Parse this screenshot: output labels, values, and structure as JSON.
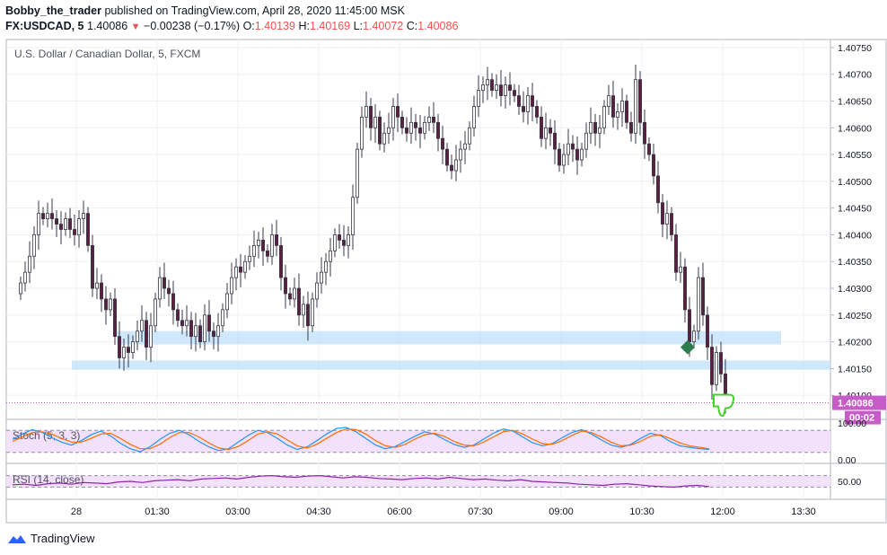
{
  "header": {
    "user": "Bobby_the_trader",
    "published_text": "published on TradingView.com, April 28, 2020 11:45:00 MSK",
    "symbol": "FX:USDCAD, 5",
    "last": "1.40086",
    "change": "−0.00238 (−0.17%)",
    "o_label": "O:",
    "o_value": "1.40139",
    "h_label": "H:",
    "h_value": "1.40169",
    "l_label": "L:",
    "l_value": "1.40072",
    "c_label": "C:",
    "c_value": "1.40086"
  },
  "footer": {
    "brand": "TradingView"
  },
  "colors": {
    "bullish": "#ffffff",
    "candle_outline": "#3a3a4a",
    "bearish": "#5b1f3f",
    "zone": "#bbdefb",
    "price_tag": "#c75bc7",
    "stoch_k": "#2196f3",
    "stoch_d": "#ff6d00",
    "rsi": "#8e24aa",
    "osc_band": "#f3e0fb"
  },
  "chart_data": [
    {
      "type": "candlestick",
      "title": "U.S. Dollar / Canadian Dollar, 5, FXCM",
      "ylim": [
        1.40055,
        1.40765
      ],
      "y_ticks": [
        "1.40750",
        "1.40700",
        "1.40650",
        "1.40600",
        "1.40550",
        "1.40500",
        "1.40450",
        "1.40400",
        "1.40350",
        "1.40300",
        "1.40250",
        "1.40200",
        "1.40150",
        "1.40100"
      ],
      "x_ticks": [
        "28",
        "01:30",
        "03:00",
        "04:30",
        "06:00",
        "07:30",
        "09:00",
        "10:30",
        "12:00",
        "13:30"
      ],
      "x_tick_minutes": [
        0,
        90,
        180,
        270,
        360,
        450,
        540,
        630,
        720,
        810
      ],
      "start_minute": -75,
      "bar_minutes": 5,
      "last_price_label": "1.40086",
      "countdown_label": "00:02",
      "last_price": 1.40086,
      "closes": [
        1.4031,
        1.4033,
        1.4036,
        1.404,
        1.4044,
        1.4043,
        1.4044,
        1.4043,
        1.4042,
        1.4041,
        1.4043,
        1.4041,
        1.404,
        1.4043,
        1.4044,
        1.4038,
        1.403,
        1.4031,
        1.4028,
        1.4026,
        1.4028,
        1.4021,
        1.4017,
        1.4019,
        1.4018,
        1.402,
        1.4022,
        1.4024,
        1.4019,
        1.4023,
        1.4028,
        1.4032,
        1.403,
        1.4029,
        1.4026,
        1.4024,
        1.4023,
        1.4024,
        1.4021,
        1.4023,
        1.402,
        1.4025,
        1.4022,
        1.4021,
        1.4023,
        1.4026,
        1.4029,
        1.4032,
        1.4034,
        1.4033,
        1.4035,
        1.4036,
        1.4038,
        1.4039,
        1.4037,
        1.4036,
        1.404,
        1.4038,
        1.4032,
        1.4029,
        1.4028,
        1.403,
        1.4025,
        1.4027,
        1.4023,
        1.4028,
        1.4031,
        1.4033,
        1.4035,
        1.4037,
        1.404,
        1.4039,
        1.4038,
        1.404,
        1.4047,
        1.4056,
        1.4062,
        1.4064,
        1.406,
        1.4062,
        1.4057,
        1.4059,
        1.406,
        1.4064,
        1.4062,
        1.406,
        1.4059,
        1.4061,
        1.406,
        1.4059,
        1.4061,
        1.4062,
        1.4061,
        1.4058,
        1.4056,
        1.4053,
        1.4052,
        1.4054,
        1.4056,
        1.4057,
        1.406,
        1.4064,
        1.4067,
        1.4068,
        1.4069,
        1.4067,
        1.4068,
        1.4066,
        1.4068,
        1.4067,
        1.4066,
        1.4064,
        1.4063,
        1.4066,
        1.4064,
        1.4062,
        1.4058,
        1.406,
        1.4059,
        1.4056,
        1.4053,
        1.4055,
        1.4057,
        1.4056,
        1.4054,
        1.4056,
        1.4059,
        1.4061,
        1.4059,
        1.406,
        1.4064,
        1.4066,
        1.4062,
        1.4063,
        1.4065,
        1.4061,
        1.4059,
        1.4069,
        1.4061,
        1.4057,
        1.4055,
        1.4051,
        1.4046,
        1.4042,
        1.4044,
        1.404,
        1.4033,
        1.4034,
        1.4026,
        1.402,
        1.4022,
        1.4032,
        1.4025,
        1.4019,
        1.4012,
        1.4018,
        1.4014,
        1.40086
      ],
      "zones": [
        [
          1.40195,
          1.4022
        ],
        [
          1.40148,
          1.40165
        ]
      ],
      "marker_up_price": 1.4019,
      "marker_down_price": 1.40086
    },
    {
      "type": "line",
      "title": "Stoch (5, 3, 3)",
      "ylim": [
        0,
        100
      ],
      "y_ticks": [
        "100.00",
        "0.00"
      ],
      "band": [
        20,
        80
      ],
      "series": [
        {
          "name": "%K",
          "values": [
            55,
            70,
            82,
            75,
            60,
            48,
            40,
            52,
            68,
            78,
            65,
            45,
            30,
            22,
            35,
            55,
            72,
            80,
            68,
            50,
            35,
            25,
            30,
            48,
            66,
            80,
            74,
            58,
            40,
            28,
            35,
            52,
            70,
            85,
            88,
            76,
            58,
            40,
            30,
            36,
            50,
            64,
            76,
            70,
            55,
            42,
            34,
            40,
            56,
            72,
            84,
            78,
            62,
            46,
            38,
            44,
            60,
            74,
            82,
            70,
            54,
            40,
            34,
            42,
            58,
            72,
            66,
            50,
            38,
            34,
            30,
            28
          ]
        },
        {
          "name": "%D",
          "values": [
            50,
            62,
            74,
            76,
            70,
            58,
            48,
            48,
            58,
            70,
            72,
            58,
            42,
            30,
            30,
            42,
            60,
            74,
            74,
            62,
            46,
            32,
            28,
            36,
            52,
            70,
            76,
            70,
            54,
            38,
            32,
            42,
            58,
            74,
            84,
            82,
            70,
            52,
            38,
            34,
            42,
            56,
            68,
            72,
            64,
            50,
            40,
            38,
            48,
            62,
            76,
            80,
            70,
            56,
            44,
            42,
            52,
            66,
            78,
            74,
            62,
            48,
            38,
            40,
            50,
            64,
            68,
            58,
            46,
            38,
            34,
            30
          ]
        }
      ]
    },
    {
      "type": "line",
      "title": "RSI (14, close)",
      "ylim": [
        0,
        100
      ],
      "y_ticks": [
        "50.00"
      ],
      "band": [
        30,
        70
      ],
      "series": [
        {
          "name": "RSI",
          "values": [
            38,
            40,
            36,
            42,
            44,
            40,
            46,
            44,
            42,
            48,
            50,
            46,
            52,
            54,
            56,
            52,
            58,
            60,
            62,
            58,
            64,
            68,
            70,
            66,
            64,
            68,
            70,
            66,
            62,
            66,
            64,
            60,
            58,
            56,
            60,
            62,
            58,
            64,
            60,
            56,
            58,
            54,
            52,
            56,
            50,
            48,
            46,
            44,
            40,
            38,
            36,
            40,
            42,
            38,
            34,
            32,
            30,
            34,
            36,
            32
          ]
        }
      ]
    }
  ]
}
